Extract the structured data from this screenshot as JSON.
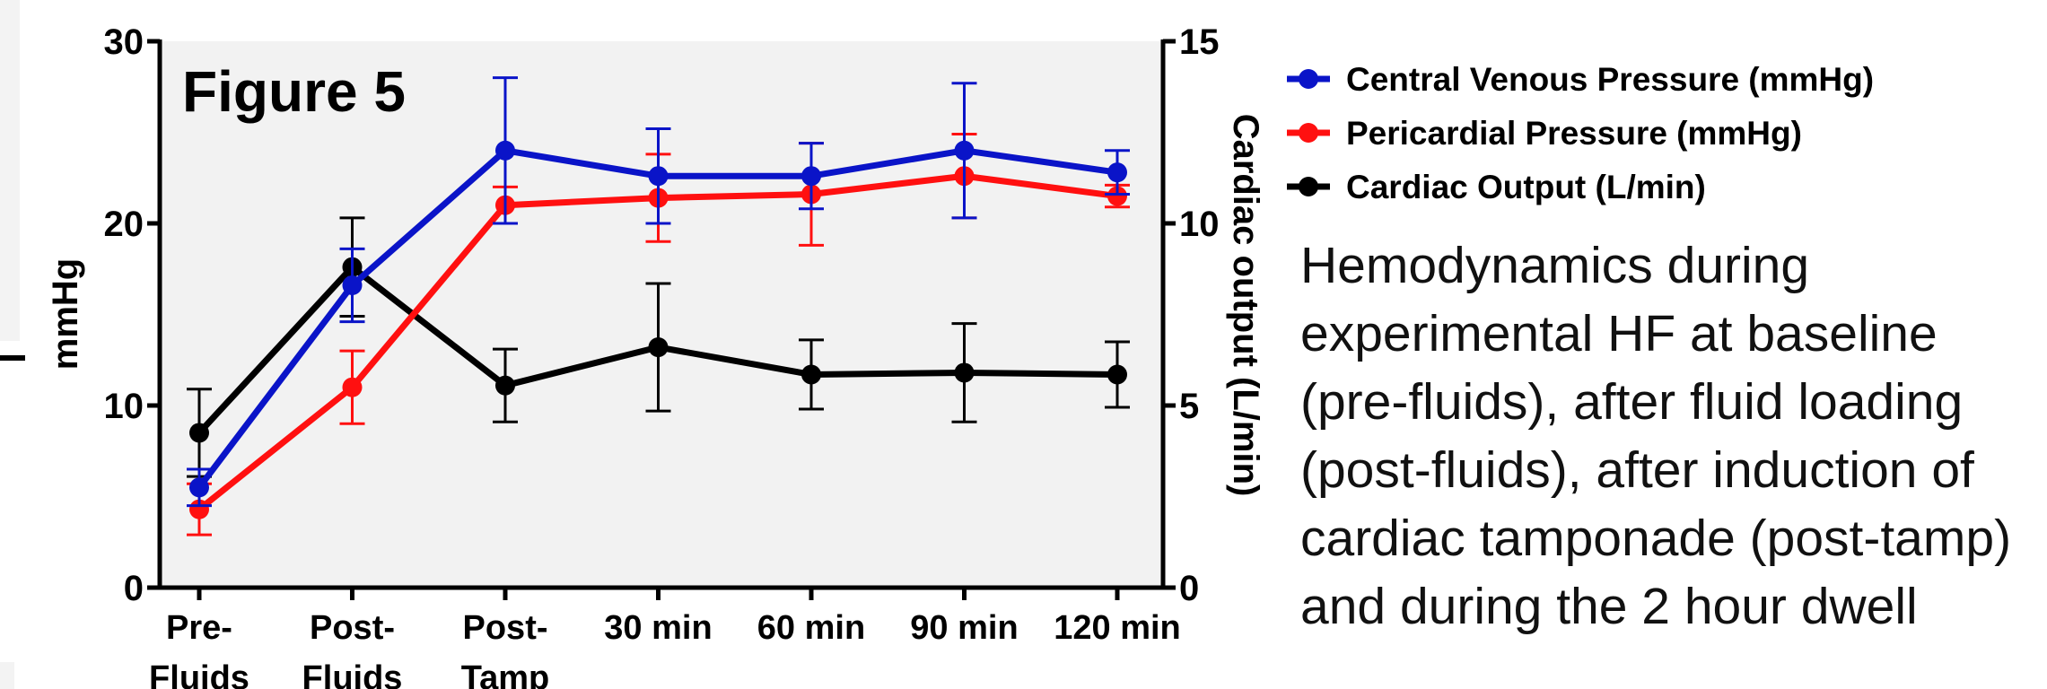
{
  "chart_data": {
    "type": "line",
    "title": "Figure 5",
    "categories": [
      "Pre-\nFluids",
      "Post-\nFluids",
      "Post-\nTamp",
      "30 min",
      "60 min",
      "90 min",
      "120 min"
    ],
    "ylabel_left": "mmHg",
    "ylabel_right": "Cardiac output (L/min)",
    "ylim_left": [
      0,
      30
    ],
    "ylim_right": [
      0,
      15
    ],
    "yticks_left": [
      "0",
      "10",
      "20",
      "30"
    ],
    "yticks_right": [
      "0",
      "5",
      "10",
      "15"
    ],
    "legend_position": "right",
    "series": [
      {
        "name": "Central Venous Pressure (mmHg)",
        "color": "#0a14c8",
        "axis": "left",
        "values": [
          5.5,
          16.6,
          24.0,
          22.6,
          22.6,
          24.0,
          22.8
        ],
        "errors": [
          1.0,
          2.0,
          4.0,
          2.6,
          1.8,
          3.7,
          1.2
        ]
      },
      {
        "name": "Pericardial Pressure (mmHg)",
        "color": "#ff1010",
        "axis": "left",
        "values": [
          4.3,
          11.0,
          21.0,
          21.4,
          21.6,
          22.6,
          21.5
        ],
        "errors": [
          1.4,
          2.0,
          1.0,
          2.4,
          2.8,
          2.3,
          0.6
        ]
      },
      {
        "name": "Cardiac Output (L/min)",
        "color": "#000000",
        "axis": "right",
        "values": [
          4.25,
          8.8,
          5.55,
          6.6,
          5.85,
          5.9,
          5.85
        ],
        "errors": [
          1.2,
          1.35,
          1.0,
          1.75,
          0.95,
          1.35,
          0.9
        ]
      }
    ]
  },
  "caption": "Hemodynamics during\nexperimental HF at baseline\n(pre-fluids), after fluid loading\n(post-fluids), after induction of\ncardiac tamponade (post-tamp)\nand during the 2 hour dwell"
}
